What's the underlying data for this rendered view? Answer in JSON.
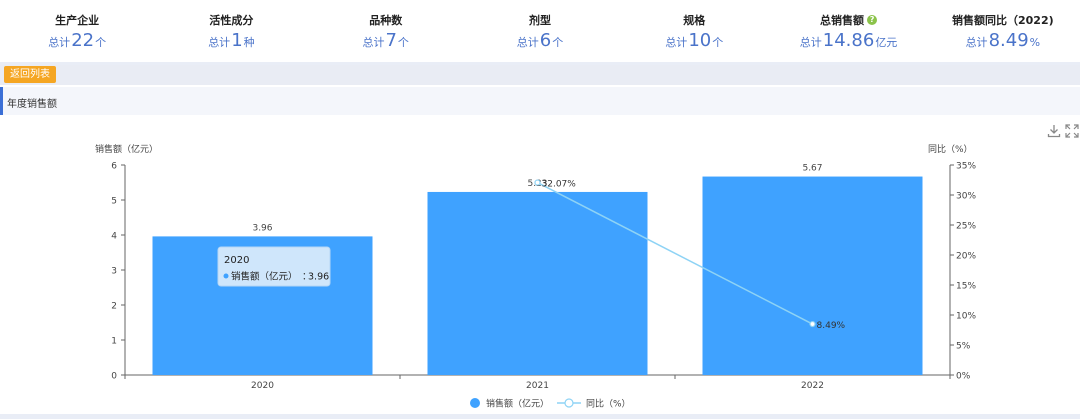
{
  "stats": [
    {
      "label": "生产企业",
      "prefix": "总计",
      "value": "22",
      "unit": "个"
    },
    {
      "label": "活性成分",
      "prefix": "总计",
      "value": "1",
      "unit": "种"
    },
    {
      "label": "品种数",
      "prefix": "总计",
      "value": "7",
      "unit": "个"
    },
    {
      "label": "剂型",
      "prefix": "总计",
      "value": "6",
      "unit": "个"
    },
    {
      "label": "规格",
      "prefix": "总计",
      "value": "10",
      "unit": "个"
    },
    {
      "label": "总销售额",
      "prefix": "总计",
      "value": "14.86",
      "unit": "亿元",
      "help_icon": "question-circle-icon"
    },
    {
      "label": "销售额同比（2022)",
      "prefix": "总计",
      "value": "8.49",
      "unit": "%"
    }
  ],
  "nav": {
    "back_label": "返回列表"
  },
  "section": {
    "title": "年度销售额"
  },
  "toolbar": {
    "download_icon": "download-icon",
    "fullscreen_icon": "fullscreen-icon"
  },
  "colors": {
    "bar": "#3fa2ff",
    "line": "#8ed3f5",
    "accent": "#3b6fd6",
    "back_button": "#f5a623",
    "stat_value": "#4a73c9"
  },
  "chart_data": {
    "type": "bar",
    "categories": [
      "2020",
      "2021",
      "2022"
    ],
    "series": [
      {
        "name": "销售额（亿元）",
        "type": "bar",
        "axis": "left",
        "values": [
          3.96,
          5.23,
          5.67
        ],
        "labels": [
          "3.96",
          "5.23",
          "5.67"
        ]
      },
      {
        "name": "同比（%）",
        "type": "line",
        "axis": "right",
        "values": [
          null,
          32.07,
          8.49
        ],
        "labels": [
          "",
          "32.07%",
          "8.49%"
        ]
      }
    ],
    "ylabel_left": "销售额（亿元）",
    "ylabel_right": "同比（%）",
    "ylim_left": [
      0,
      6
    ],
    "ylim_right": [
      0,
      35
    ],
    "yticks_left": [
      "0",
      "1",
      "2",
      "3",
      "4",
      "5",
      "6"
    ],
    "yticks_right": [
      "0%",
      "5%",
      "10%",
      "15%",
      "20%",
      "25%",
      "30%",
      "35%"
    ],
    "grid": false,
    "legend_position": "bottom",
    "tooltip": {
      "title": "2020",
      "series": "销售额（亿元）",
      "value": "3.96"
    }
  }
}
